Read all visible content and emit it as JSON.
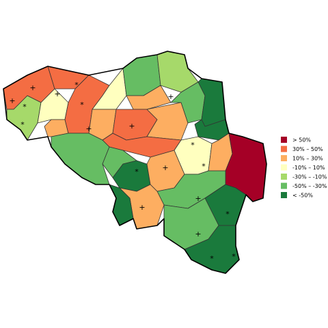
{
  "legend": {
    "entries": [
      {
        "label": "> 50%",
        "color": "#a50026"
      },
      {
        "label": "30%  –  50%",
        "color": "#f46d43"
      },
      {
        "label": "10%  –  30%",
        "color": "#fdae61"
      },
      {
        "label": "-10%  –  10%",
        "color": "#ffffbf"
      },
      {
        "label": "-30%  –  -10%",
        "color": "#a6d96a"
      },
      {
        "label": "-50%  –  -30%",
        "color": "#66bd63"
      },
      {
        "label": "< -50%",
        "color": "#1a7a3c"
      }
    ]
  },
  "markers": {
    "star": "*",
    "plus": "+"
  }
}
